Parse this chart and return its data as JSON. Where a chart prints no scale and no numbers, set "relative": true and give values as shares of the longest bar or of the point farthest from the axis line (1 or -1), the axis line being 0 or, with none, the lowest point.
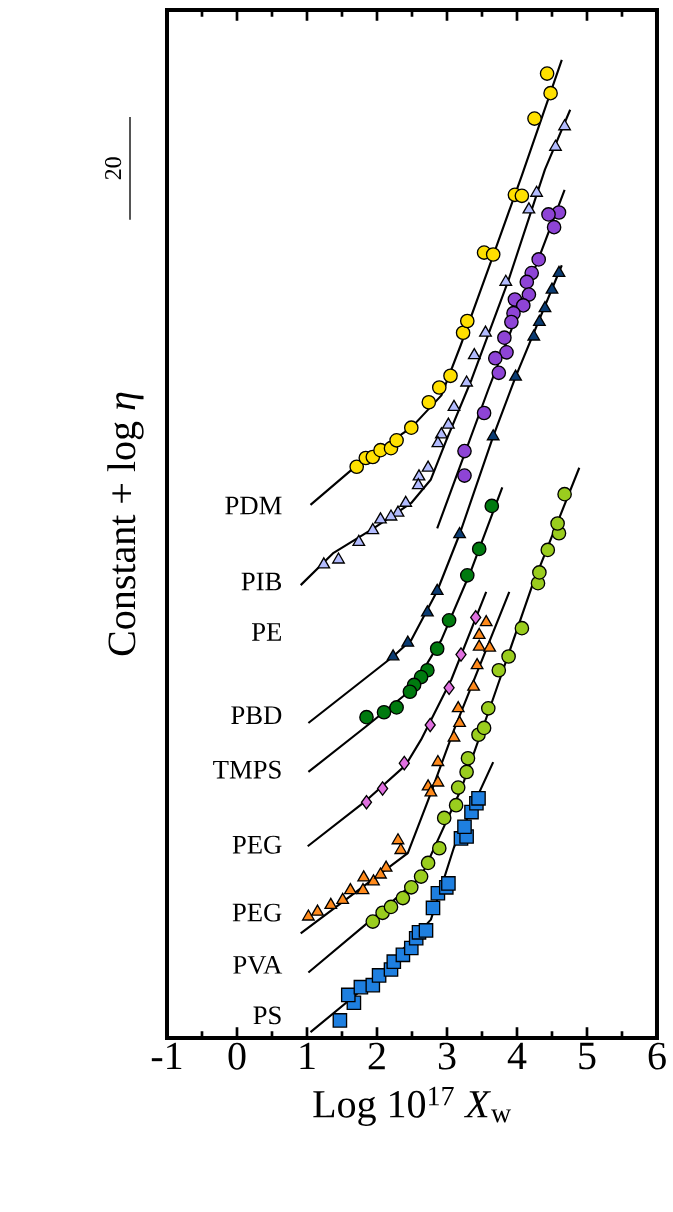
{
  "chart_data": {
    "type": "scatter",
    "xlabel": "Log 10$^{17}$ *X*$_{w}$",
    "ylabel": "Constant + log *η*",
    "relative": true,
    "xlim": [
      -1,
      6
    ],
    "xticks": [
      -1,
      0,
      1,
      2,
      3,
      4,
      5,
      6
    ],
    "annotations": [
      "20",
      "PDM",
      "PIB",
      "PE",
      "PBD",
      "TMPS",
      "PEG",
      "PEG",
      "PVA",
      "PS"
    ],
    "series": [
      {
        "type": "line",
        "color": "#000000",
        "marker": "none",
        "x": [
          1.05,
          1.77,
          2.49,
          2.92,
          3.2,
          3.64,
          4.07,
          4.64
        ],
        "values": [
          0.545,
          0.589,
          0.624,
          0.657,
          0.709,
          0.796,
          0.882,
          1.0
        ]
      },
      {
        "type": "scatter",
        "color": "#ffe000",
        "marker": "circle",
        "x": [
          1.71,
          1.84,
          1.94,
          2.05,
          2.2,
          2.28,
          2.49,
          2.74,
          2.89,
          3.05,
          3.23,
          3.29,
          3.53,
          3.66,
          3.97,
          4.07,
          4.25,
          4.48,
          4.43
        ],
        "values": [
          0.584,
          0.593,
          0.594,
          0.601,
          0.603,
          0.611,
          0.624,
          0.65,
          0.665,
          0.677,
          0.721,
          0.733,
          0.803,
          0.801,
          0.862,
          0.861,
          0.94,
          0.966,
          0.986
        ]
      },
      {
        "type": "line",
        "color": "#000000",
        "marker": "none",
        "x": [
          0.91,
          1.38,
          1.95,
          2.49,
          2.77,
          2.99,
          3.35,
          3.88,
          4.4,
          4.76
        ],
        "values": [
          0.463,
          0.496,
          0.521,
          0.547,
          0.571,
          0.611,
          0.673,
          0.775,
          0.888,
          0.949
        ]
      },
      {
        "type": "scatter",
        "color": "#b3bcff",
        "marker": "triangle",
        "x": [
          4.68,
          4.55,
          4.28,
          4.17,
          3.84,
          3.55,
          3.39,
          3.28,
          3.1,
          3.02,
          2.92,
          2.87,
          2.73,
          2.6,
          2.59,
          2.41,
          2.3,
          2.2,
          2.05,
          1.94,
          1.74,
          1.45,
          1.24
        ],
        "values": [
          0.932,
          0.911,
          0.864,
          0.847,
          0.773,
          0.721,
          0.698,
          0.67,
          0.645,
          0.627,
          0.617,
          0.608,
          0.583,
          0.574,
          0.565,
          0.547,
          0.537,
          0.533,
          0.53,
          0.519,
          0.507,
          0.489,
          0.484
        ]
      },
      {
        "type": "line",
        "color": "#000000",
        "marker": "none",
        "x": [
          2.86,
          3.59,
          4.14,
          4.68
        ],
        "values": [
          0.521,
          0.663,
          0.765,
          0.867
        ]
      },
      {
        "type": "scatter",
        "color": "#8e44d6",
        "marker": "circle",
        "x": [
          4.6,
          4.45,
          4.53,
          4.31,
          4.21,
          4.14,
          4.17,
          3.97,
          4.09,
          3.95,
          3.92,
          3.82,
          3.85,
          3.69,
          3.74,
          3.53,
          3.25,
          3.25
        ],
        "values": [
          0.844,
          0.842,
          0.829,
          0.796,
          0.782,
          0.773,
          0.76,
          0.755,
          0.749,
          0.741,
          0.732,
          0.716,
          0.701,
          0.695,
          0.68,
          0.639,
          0.6,
          0.575
        ]
      },
      {
        "type": "line",
        "color": "#000000",
        "marker": "none",
        "x": [
          1.02,
          2.23,
          2.49,
          2.86,
          3.18,
          3.66,
          3.98,
          4.64
        ],
        "values": [
          0.322,
          0.39,
          0.407,
          0.457,
          0.515,
          0.615,
          0.676,
          0.79
        ]
      },
      {
        "type": "scatter",
        "color": "#0b3c73",
        "marker": "triangle",
        "x": [
          4.6,
          4.5,
          4.4,
          4.32,
          4.24,
          3.98,
          3.66,
          3.18,
          2.86,
          2.72,
          2.44,
          2.23
        ],
        "values": [
          0.782,
          0.765,
          0.746,
          0.732,
          0.717,
          0.676,
          0.615,
          0.515,
          0.457,
          0.435,
          0.404,
          0.39
        ]
      },
      {
        "type": "line",
        "color": "#000000",
        "marker": "none",
        "x": [
          1.02,
          1.87,
          2.49,
          2.92,
          3.35,
          3.79
        ],
        "values": [
          0.272,
          0.32,
          0.356,
          0.407,
          0.479,
          0.563
        ]
      },
      {
        "type": "scatter",
        "color": "#007a0f",
        "marker": "circle",
        "x": [
          3.64,
          3.46,
          3.29,
          3.03,
          2.86,
          2.72,
          2.63,
          2.53,
          2.47,
          2.28,
          2.1,
          1.85
        ],
        "values": [
          0.544,
          0.5,
          0.473,
          0.427,
          0.398,
          0.376,
          0.369,
          0.361,
          0.354,
          0.338,
          0.333,
          0.328
        ]
      },
      {
        "type": "line",
        "color": "#000000",
        "marker": "none",
        "x": [
          1.01,
          1.85,
          2.41,
          2.63,
          3.06,
          3.56
        ],
        "values": [
          0.196,
          0.243,
          0.279,
          0.305,
          0.366,
          0.456
        ]
      },
      {
        "type": "scatter",
        "color": "#e070e0",
        "marker": "diamond",
        "x": [
          1.85,
          2.08,
          2.39,
          2.76,
          3.03,
          3.2,
          3.41
        ],
        "values": [
          0.241,
          0.255,
          0.281,
          0.32,
          0.358,
          0.392,
          0.43
        ]
      },
      {
        "type": "line",
        "color": "#000000",
        "marker": "none",
        "x": [
          0.91,
          2.44,
          2.73,
          3.1,
          3.89
        ],
        "values": [
          0.107,
          0.189,
          0.243,
          0.315,
          0.456
        ]
      },
      {
        "type": "scatter",
        "color": "#ff8a1c",
        "marker": "triangle",
        "x": [
          1.02,
          1.15,
          1.34,
          1.51,
          1.62,
          1.81,
          1.8,
          1.95,
          2.13,
          2.05,
          2.3,
          2.34,
          2.73,
          2.77,
          2.87,
          2.87,
          3.1,
          3.18,
          3.16,
          3.38,
          3.43,
          3.46,
          3.61,
          3.46,
          3.56
        ],
        "values": [
          0.124,
          0.129,
          0.136,
          0.141,
          0.151,
          0.164,
          0.151,
          0.16,
          0.174,
          0.167,
          0.202,
          0.192,
          0.257,
          0.251,
          0.261,
          0.282,
          0.307,
          0.322,
          0.337,
          0.359,
          0.381,
          0.4,
          0.399,
          0.412,
          0.425
        ]
      },
      {
        "type": "line",
        "color": "#000000",
        "marker": "none",
        "x": [
          1.02,
          1.87,
          2.63,
          3.2,
          3.64,
          4.21,
          4.89
        ],
        "values": [
          0.067,
          0.118,
          0.165,
          0.254,
          0.343,
          0.461,
          0.583
        ]
      },
      {
        "type": "scatter",
        "color": "#9acd1e",
        "marker": "circle",
        "x": [
          1.94,
          2.08,
          2.2,
          2.37,
          2.49,
          2.63,
          2.73,
          2.89,
          2.96,
          3.13,
          3.16,
          3.28,
          3.3,
          3.45,
          3.53,
          3.59,
          3.74,
          3.88,
          4.07,
          4.3,
          4.32,
          4.44,
          4.6,
          4.58,
          4.68
        ],
        "values": [
          0.119,
          0.128,
          0.134,
          0.143,
          0.154,
          0.165,
          0.179,
          0.194,
          0.225,
          0.238,
          0.256,
          0.272,
          0.286,
          0.31,
          0.317,
          0.337,
          0.376,
          0.39,
          0.419,
          0.465,
          0.476,
          0.499,
          0.516,
          0.526,
          0.556
        ]
      },
      {
        "type": "line",
        "color": "#000000",
        "marker": "none",
        "x": [
          1.05,
          1.95,
          2.77,
          3.1,
          3.66
        ],
        "values": [
          0.006,
          0.059,
          0.121,
          0.195,
          0.282
        ]
      },
      {
        "type": "scatter",
        "color": "#1e7fe0",
        "marker": "square",
        "x": [
          1.47,
          1.67,
          1.59,
          1.77,
          1.94,
          2.03,
          2.2,
          2.24,
          2.37,
          2.49,
          2.56,
          2.6,
          2.7,
          2.8,
          2.87,
          2.99,
          3.02,
          3.2,
          3.28,
          3.25,
          3.35,
          3.42,
          3.45
        ],
        "values": [
          0.018,
          0.036,
          0.044,
          0.052,
          0.054,
          0.064,
          0.07,
          0.078,
          0.085,
          0.092,
          0.102,
          0.108,
          0.11,
          0.133,
          0.148,
          0.154,
          0.158,
          0.204,
          0.206,
          0.216,
          0.231,
          0.24,
          0.245
        ]
      }
    ]
  }
}
